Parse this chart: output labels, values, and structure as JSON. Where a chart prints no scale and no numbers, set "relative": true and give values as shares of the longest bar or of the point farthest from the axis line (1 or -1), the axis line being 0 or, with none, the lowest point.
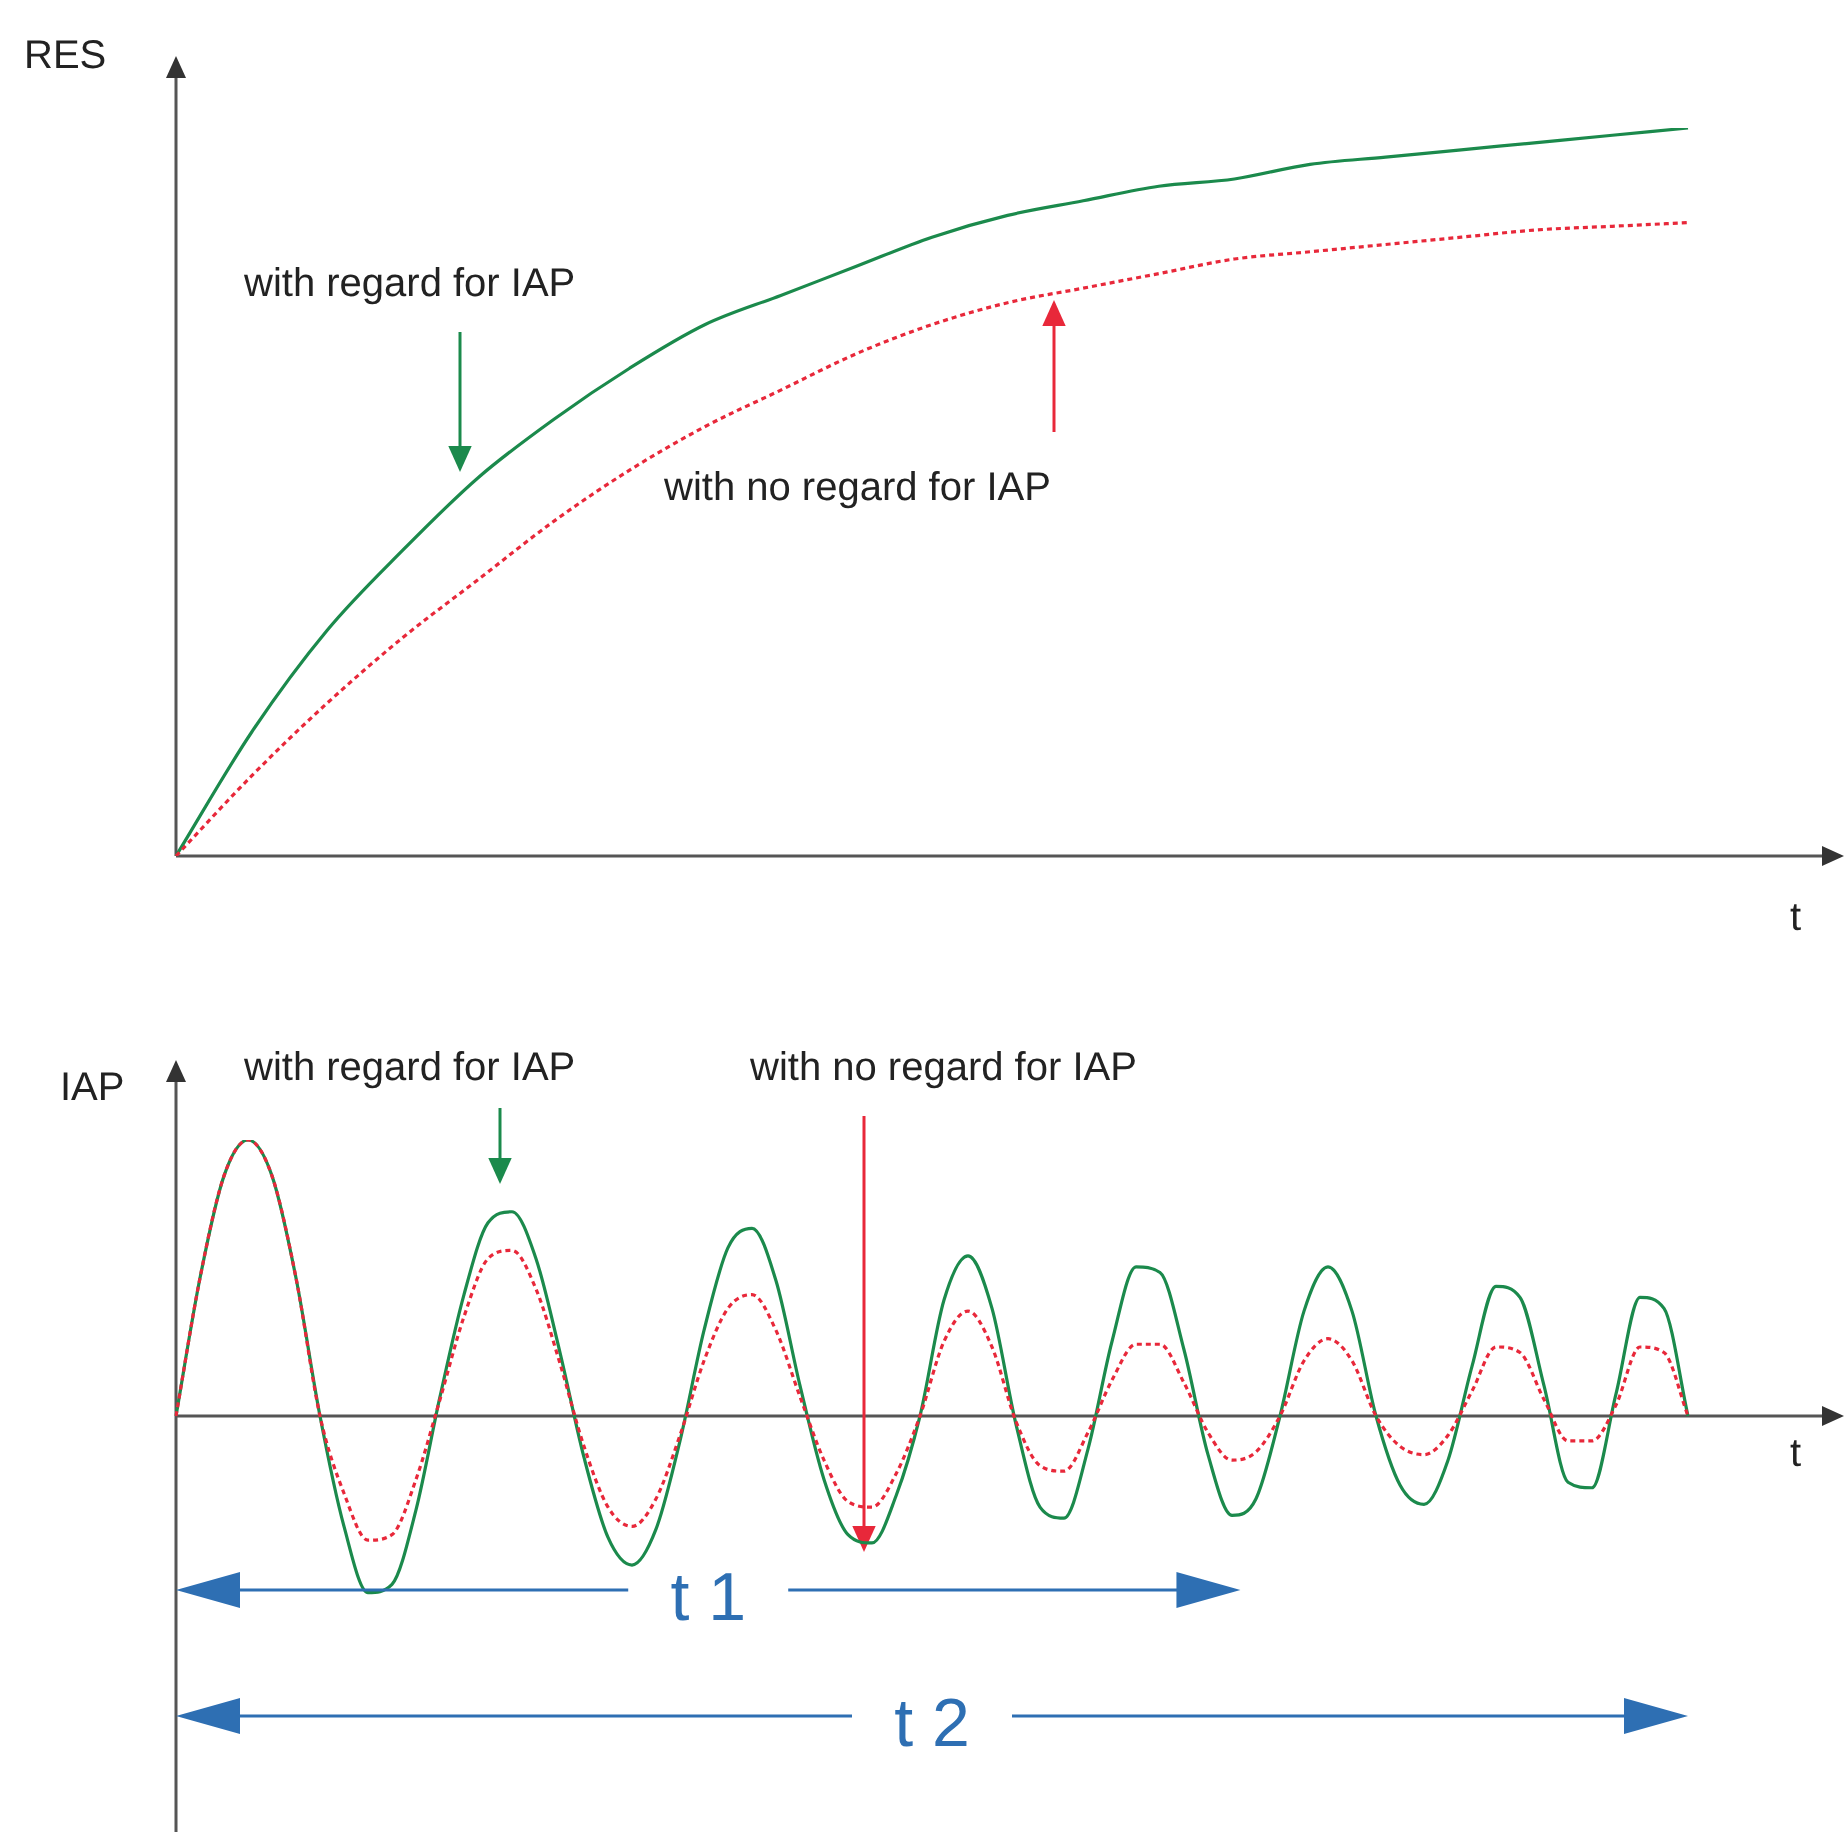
{
  "chart_data": [
    {
      "type": "line",
      "relative": true,
      "ylabel": "RES",
      "xlabel": "t",
      "marker": "none",
      "categories": [
        null,
        null,
        null,
        null,
        null,
        null,
        null,
        null,
        null,
        null,
        null,
        null,
        null,
        null,
        null,
        null,
        null,
        null,
        null,
        null,
        null
      ],
      "series": [
        {
          "name": "with regard for IAP",
          "color": "#1b8a4c",
          "line_style": "solid",
          "values": [
            0,
            0.17,
            0.31,
            0.42,
            0.52,
            0.6,
            0.67,
            0.73,
            0.77,
            0.81,
            0.85,
            0.88,
            0.9,
            0.92,
            0.93,
            0.95,
            0.96,
            0.97,
            0.98,
            0.99,
            1
          ]
        },
        {
          "name": "with no regard for IAP",
          "color": "#e8283a",
          "line_style": "dotted",
          "values": [
            0,
            0.11,
            0.21,
            0.3,
            0.38,
            0.46,
            0.53,
            0.59,
            0.64,
            0.69,
            0.73,
            0.76,
            0.78,
            0.8,
            0.82,
            0.83,
            0.84,
            0.85,
            0.86,
            0.865,
            0.87
          ]
        }
      ]
    },
    {
      "type": "line",
      "relative": true,
      "ylabel": "IAP",
      "xlabel": "t",
      "marker": "none",
      "annotations": [
        "t 1",
        "t 2"
      ],
      "categories": [
        null,
        null,
        null,
        null,
        null,
        null,
        null,
        null,
        null,
        null,
        null,
        null,
        null,
        null,
        null,
        null,
        null,
        null,
        null,
        null,
        null,
        null,
        null,
        null,
        null,
        null,
        null,
        null,
        null,
        null,
        null,
        null,
        null,
        null,
        null,
        null,
        null,
        null,
        null,
        null,
        null,
        null,
        null,
        null,
        null,
        null,
        null,
        null,
        null,
        null,
        null,
        null,
        null,
        null,
        null,
        null,
        null,
        null,
        null,
        null,
        null,
        null,
        null,
        null
      ],
      "series": [
        {
          "name": "with regard for IAP",
          "color": "#1b8a4c",
          "line_style": "solid",
          "values": [
            0,
            0.5,
            0.87,
            1,
            0.87,
            0.5,
            0,
            -0.4,
            -0.64,
            -0.61,
            -0.34,
            0.07,
            0.44,
            0.7,
            0.74,
            0.57,
            0.23,
            -0.15,
            -0.44,
            -0.54,
            -0.41,
            -0.09,
            0.31,
            0.61,
            0.68,
            0.49,
            0.11,
            -0.23,
            -0.43,
            -0.46,
            -0.29,
            0,
            0.42,
            0.58,
            0.39,
            -0.03,
            -0.33,
            -0.37,
            -0.12,
            0.27,
            0.54,
            0.52,
            0.24,
            -0.14,
            -0.36,
            -0.3,
            0,
            0.38,
            0.54,
            0.38,
            0,
            -0.25,
            -0.32,
            -0.16,
            0.18,
            0.47,
            0.43,
            0.11,
            -0.24,
            -0.26,
            0.08,
            0.43,
            0.39,
            0
          ]
        },
        {
          "name": "with no regard for IAP",
          "color": "#e8283a",
          "line_style": "dotted",
          "values": [
            0,
            0.5,
            0.87,
            1,
            0.87,
            0.5,
            0,
            -0.28,
            -0.45,
            -0.43,
            -0.23,
            0.06,
            0.36,
            0.57,
            0.6,
            0.46,
            0.19,
            -0.11,
            -0.33,
            -0.4,
            -0.3,
            -0.07,
            0.2,
            0.39,
            0.44,
            0.31,
            0.07,
            -0.16,
            -0.31,
            -0.33,
            -0.21,
            0,
            0.27,
            0.38,
            0.25,
            -0.02,
            -0.18,
            -0.2,
            -0.06,
            0.13,
            0.26,
            0.26,
            0.12,
            -0.06,
            -0.16,
            -0.13,
            0,
            0.2,
            0.28,
            0.2,
            0,
            -0.11,
            -0.14,
            -0.07,
            0.09,
            0.25,
            0.23,
            0.06,
            -0.09,
            -0.09,
            0.04,
            0.25,
            0.23,
            0
          ]
        }
      ]
    }
  ]
}
